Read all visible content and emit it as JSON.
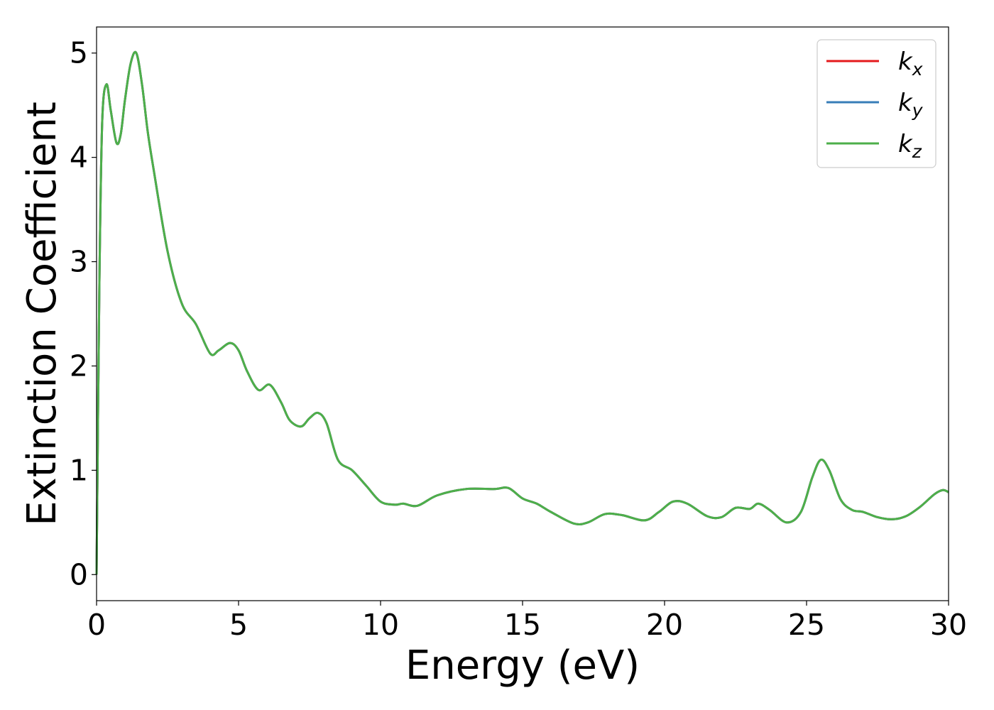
{
  "chart_data": {
    "type": "line",
    "xlabel": "Energy (eV)",
    "ylabel": "Extinction Coefficient",
    "xlim": [
      0,
      30
    ],
    "ylim": [
      -0.25,
      5.25
    ],
    "xticks": [
      0,
      5,
      10,
      15,
      20,
      25,
      30
    ],
    "yticks": [
      0,
      1,
      2,
      3,
      4,
      5
    ],
    "grid": false,
    "legend_position": "top-right",
    "series": [
      {
        "name": "k",
        "subscript": "x",
        "color": "#e41a1c"
      },
      {
        "name": "k",
        "subscript": "y",
        "color": "#377eb8"
      },
      {
        "name": "k",
        "subscript": "z",
        "color": "#4daf4a"
      }
    ],
    "x": [
      0,
      0.1,
      0.2,
      0.35,
      0.5,
      0.7,
      0.85,
      1.0,
      1.2,
      1.4,
      1.6,
      1.8,
      2.0,
      2.5,
      3.0,
      3.5,
      4.0,
      4.3,
      4.7,
      5.0,
      5.3,
      5.7,
      6.1,
      6.5,
      6.8,
      7.2,
      7.5,
      7.8,
      8.1,
      8.5,
      9.0,
      9.5,
      10.0,
      10.5,
      10.8,
      11.3,
      12.0,
      13.0,
      14.0,
      14.5,
      15.0,
      15.5,
      16.0,
      16.8,
      17.3,
      17.9,
      18.5,
      19.3,
      19.8,
      20.3,
      20.8,
      21.5,
      22.0,
      22.5,
      23.0,
      23.3,
      23.7,
      24.3,
      24.8,
      25.2,
      25.5,
      25.8,
      26.2,
      26.6,
      27.0,
      27.5,
      28.0,
      28.5,
      29.0,
      29.5,
      29.8,
      30.0
    ],
    "y": [
      0.0,
      2.8,
      4.35,
      4.7,
      4.45,
      4.14,
      4.22,
      4.55,
      4.9,
      5.0,
      4.7,
      4.25,
      3.9,
      3.1,
      2.6,
      2.4,
      2.12,
      2.15,
      2.22,
      2.15,
      1.95,
      1.77,
      1.82,
      1.65,
      1.48,
      1.42,
      1.5,
      1.55,
      1.45,
      1.1,
      1.0,
      0.85,
      0.7,
      0.67,
      0.68,
      0.66,
      0.76,
      0.82,
      0.82,
      0.83,
      0.73,
      0.68,
      0.6,
      0.49,
      0.5,
      0.58,
      0.57,
      0.52,
      0.6,
      0.7,
      0.68,
      0.56,
      0.55,
      0.64,
      0.63,
      0.68,
      0.62,
      0.5,
      0.6,
      0.93,
      1.1,
      1.0,
      0.72,
      0.62,
      0.6,
      0.55,
      0.53,
      0.56,
      0.65,
      0.77,
      0.81,
      0.79
    ]
  }
}
